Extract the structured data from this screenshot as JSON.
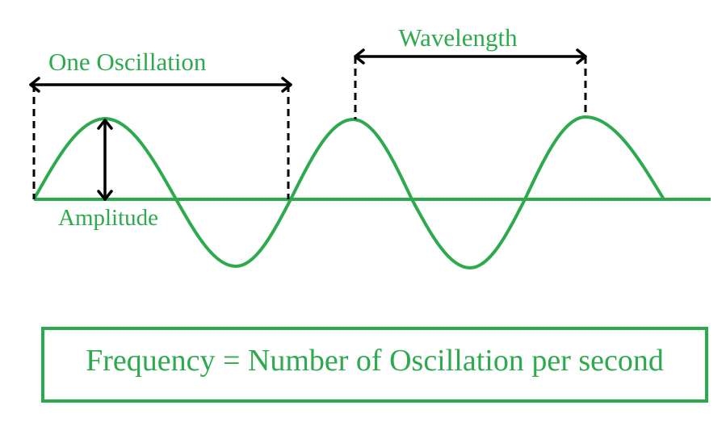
{
  "labels": {
    "one_oscillation": "One Oscillation",
    "wavelength": "Wavelength",
    "amplitude": "Amplitude"
  },
  "formula": "Frequency = Number of Oscillation per second"
}
